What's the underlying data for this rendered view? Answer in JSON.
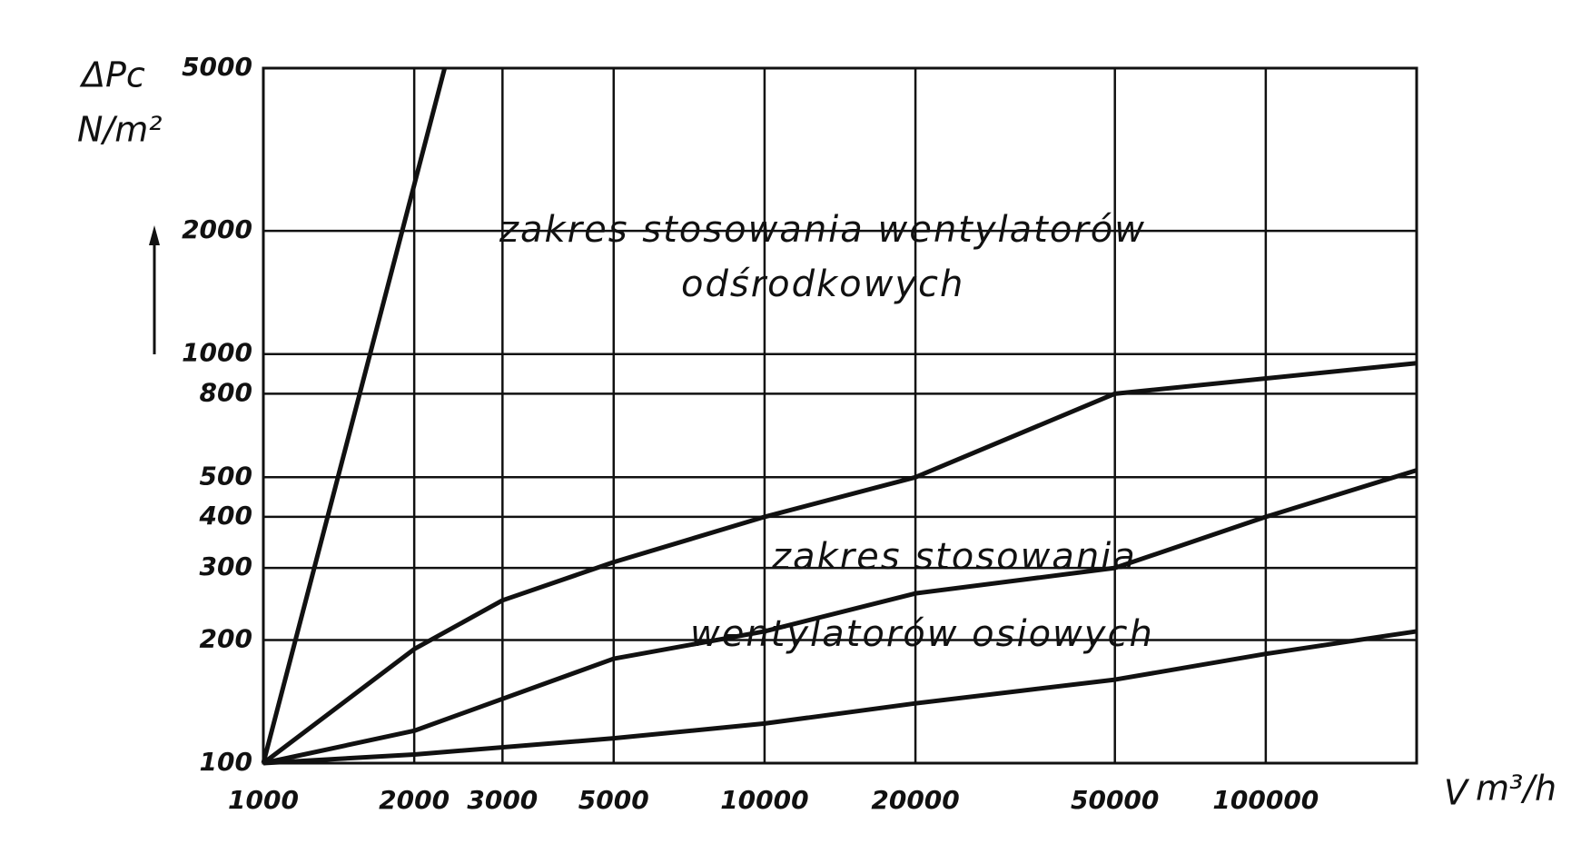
{
  "chart_data": {
    "type": "line",
    "ylabel": "ΔPc",
    "yunit": "N/m²",
    "xlabel": "V",
    "xunit": "m³/h",
    "log_x": true,
    "log_y": true,
    "grid": true,
    "xlim": [
      1000,
      200000
    ],
    "ylim": [
      100,
      5000
    ],
    "xticks": [
      1000,
      2000,
      3000,
      5000,
      10000,
      20000,
      50000,
      100000
    ],
    "yticks": [
      100,
      200,
      300,
      400,
      500,
      800,
      1000,
      2000,
      5000
    ],
    "annotations": [
      "zakres stosowania wentylatorów",
      "odśrodkowych",
      "zakres stosowania",
      "wentylatorów osiowych"
    ],
    "series": [
      {
        "color": "#111111",
        "x": [
          1000,
          2300
        ],
        "values": [
          100,
          5000
        ]
      },
      {
        "color": "#111111",
        "x": [
          1000,
          2000,
          3000,
          5000,
          10000,
          20000,
          50000,
          200000
        ],
        "values": [
          100,
          190,
          250,
          310,
          400,
          500,
          800,
          950
        ]
      },
      {
        "color": "#111111",
        "x": [
          1000,
          2000,
          5000,
          10000,
          20000,
          50000,
          100000,
          200000
        ],
        "values": [
          100,
          120,
          180,
          210,
          260,
          300,
          400,
          520
        ]
      },
      {
        "color": "#111111",
        "x": [
          1000,
          2000,
          5000,
          10000,
          20000,
          50000,
          100000,
          200000
        ],
        "values": [
          100,
          105,
          115,
          125,
          140,
          160,
          185,
          210
        ]
      }
    ]
  }
}
